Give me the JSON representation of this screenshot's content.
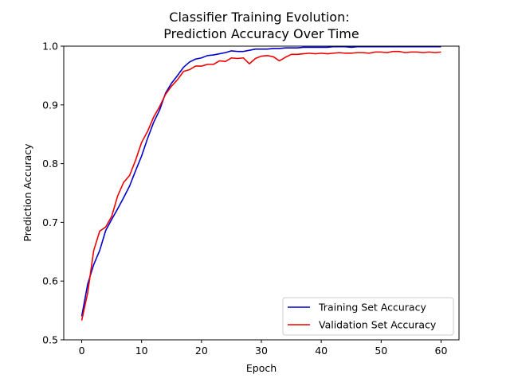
{
  "chart_data": {
    "type": "line",
    "title": "Classifier Training Evolution:\nPrediction Accuracy Over Time",
    "xlabel": "Epoch",
    "ylabel": "Prediction Accuracy",
    "xlim": [
      -3,
      63
    ],
    "ylim": [
      0.5,
      1.0
    ],
    "xticks": [
      0,
      10,
      20,
      30,
      40,
      50,
      60
    ],
    "yticks": [
      0.5,
      0.6,
      0.7,
      0.8,
      0.9,
      1.0
    ],
    "grid": false,
    "legend_position": "lower-right",
    "x": [
      0,
      1,
      2,
      3,
      4,
      5,
      6,
      7,
      8,
      9,
      10,
      11,
      12,
      13,
      14,
      15,
      16,
      17,
      18,
      19,
      20,
      21,
      22,
      23,
      24,
      25,
      26,
      27,
      28,
      29,
      30,
      31,
      32,
      33,
      34,
      35,
      36,
      37,
      38,
      39,
      40,
      41,
      42,
      43,
      44,
      45,
      46,
      47,
      48,
      49,
      50,
      51,
      52,
      53,
      54,
      55,
      56,
      57,
      58,
      59,
      60
    ],
    "series": [
      {
        "name": "Training Set Accuracy",
        "color": "#0000cc",
        "values": [
          0.54,
          0.595,
          0.628,
          0.652,
          0.686,
          0.705,
          0.723,
          0.742,
          0.762,
          0.788,
          0.813,
          0.843,
          0.87,
          0.891,
          0.92,
          0.937,
          0.95,
          0.964,
          0.973,
          0.978,
          0.98,
          0.984,
          0.985,
          0.987,
          0.989,
          0.992,
          0.991,
          0.991,
          0.993,
          0.995,
          0.995,
          0.995,
          0.996,
          0.996,
          0.997,
          0.997,
          0.997,
          0.998,
          0.998,
          0.998,
          0.998,
          0.998,
          0.999,
          0.999,
          0.999,
          0.998,
          0.999,
          0.999,
          0.999,
          0.999,
          0.999,
          0.999,
          0.999,
          0.999,
          0.999,
          0.999,
          0.999,
          0.999,
          0.999,
          0.999,
          0.999
        ]
      },
      {
        "name": "Validation Set Accuracy",
        "color": "#ee0000",
        "values": [
          0.533,
          0.58,
          0.652,
          0.685,
          0.692,
          0.71,
          0.745,
          0.768,
          0.78,
          0.806,
          0.836,
          0.855,
          0.879,
          0.897,
          0.918,
          0.932,
          0.943,
          0.957,
          0.96,
          0.966,
          0.966,
          0.969,
          0.969,
          0.975,
          0.974,
          0.98,
          0.979,
          0.98,
          0.97,
          0.979,
          0.983,
          0.984,
          0.982,
          0.975,
          0.981,
          0.986,
          0.986,
          0.987,
          0.988,
          0.987,
          0.988,
          0.987,
          0.988,
          0.989,
          0.988,
          0.988,
          0.989,
          0.989,
          0.988,
          0.99,
          0.99,
          0.989,
          0.991,
          0.991,
          0.989,
          0.99,
          0.99,
          0.989,
          0.99,
          0.989,
          0.99
        ]
      }
    ]
  }
}
